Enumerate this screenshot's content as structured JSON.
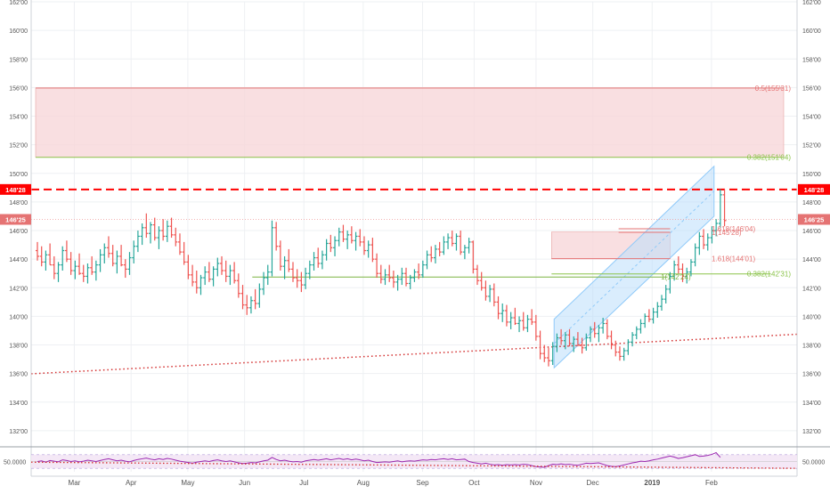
{
  "chart_data": {
    "type": "ohlc",
    "colors": {
      "up": "#26a69a",
      "down": "#ef5350",
      "grid": "#eef0f3",
      "axis_text": "#555555",
      "zone_fill": "#f8d7da",
      "zone_border": "#e9a4a4",
      "fib_green": "#8bc34a",
      "fib_red": "#f06292",
      "channel_fill": "#bbdefb",
      "channel_border": "#90caf9",
      "resistance": "#ff0000",
      "trendline": "#d32f2f",
      "rsi_line": "#9c27b0",
      "rsi_fill": "#f3e5f5"
    },
    "y_axis": {
      "ylim": [
        131.0,
        162.0
      ],
      "ticks": [
        "132'00",
        "134'00",
        "136'00",
        "138'00",
        "140'00",
        "142'00",
        "144'00",
        "146'00",
        "148'00",
        "150'00",
        "152'00",
        "154'00",
        "156'00",
        "158'00",
        "160'00",
        "162'00"
      ],
      "tick_values": [
        132,
        134,
        136,
        138,
        140,
        142,
        144,
        146,
        148,
        150,
        152,
        154,
        156,
        158,
        160,
        162
      ]
    },
    "x_axis": {
      "xlim": [
        0,
        290
      ],
      "labels": [
        {
          "label": "Mar",
          "x": 15
        },
        {
          "label": "Apr",
          "x": 37
        },
        {
          "label": "May",
          "x": 59
        },
        {
          "label": "Jun",
          "x": 81
        },
        {
          "label": "Jul",
          "x": 104
        },
        {
          "label": "Aug",
          "x": 127
        },
        {
          "label": "Sep",
          "x": 150
        },
        {
          "label": "Oct",
          "x": 170
        },
        {
          "label": "Nov",
          "x": 194
        },
        {
          "label": "Dec",
          "x": 216
        },
        {
          "label": "2019",
          "x": 239,
          "bold": true
        },
        {
          "label": "Feb",
          "x": 262
        }
      ]
    },
    "price_tags": [
      {
        "label": "148'28",
        "value": 148.875,
        "highlight": true
      },
      {
        "label": "146'25",
        "value": 146.78,
        "highlight": false
      }
    ],
    "zones": [
      {
        "name": "resistance-zone",
        "y_low": 151.125,
        "y_high": 155.97,
        "x_start": 0,
        "x_end": 290
      },
      {
        "name": "projection-box",
        "y_low": 144.03,
        "y_high": 145.9,
        "x_start": 200,
        "x_end": 246
      }
    ],
    "horizontal_lines": [
      {
        "name": "fib-0.5",
        "value": 155.97,
        "x_start": 0,
        "x_end": 290,
        "color": "#e57373",
        "label": "0.5(155'31)"
      },
      {
        "name": "fib-0.382-upper",
        "value": 151.125,
        "x_start": 0,
        "x_end": 290,
        "color": "#8bc34a",
        "label": "0.382(151'04)"
      },
      {
        "name": "fib-0.382-lower",
        "value": 142.97,
        "x_start": 200,
        "x_end": 285,
        "color": "#8bc34a",
        "label": "0.382(142'31)"
      },
      {
        "name": "fib-1-lower",
        "value": 142.75,
        "x_start": 84,
        "x_end": 245,
        "color": "#7cb342",
        "label": "1(142'24)"
      },
      {
        "name": "fib-1.618-lower",
        "value": 144.03,
        "x_start": 200,
        "x_end": 246,
        "color": "#e57373",
        "label": "1.618(144'01)"
      },
      {
        "name": "fib-1.618-upper",
        "value": 146.125,
        "x_start": 226,
        "x_end": 246,
        "color": "#e57373",
        "label": "1.618(146'04)"
      },
      {
        "name": "fib-1-upper",
        "value": 145.875,
        "x_start": 226,
        "x_end": 246,
        "color": "#e57373",
        "label": "1(145'28)"
      }
    ],
    "resistance_line": {
      "value": 148.875,
      "label": "148'28"
    },
    "reference_line": {
      "value": 146.78
    },
    "trendline": {
      "x1": 0,
      "y1": 136.0,
      "x2": 290,
      "y2": 138.7
    },
    "channel": {
      "lower_start": {
        "x": 201,
        "y": 136.4
      },
      "lower_end": {
        "x": 263,
        "y": 147.0
      },
      "upper_start": {
        "x": 201,
        "y": 139.8
      },
      "upper_end": {
        "x": 263,
        "y": 150.5
      }
    },
    "ohlc": [
      [
        144.6,
        145.2,
        143.9,
        144.2
      ],
      [
        144.2,
        144.9,
        143.5,
        143.8
      ],
      [
        143.8,
        144.6,
        143.2,
        144.3
      ],
      [
        144.3,
        145.1,
        143.6,
        143.6
      ],
      [
        143.6,
        144.2,
        142.6,
        143.0
      ],
      [
        143.0,
        143.8,
        142.4,
        143.6
      ],
      [
        143.6,
        144.9,
        143.2,
        144.6
      ],
      [
        144.6,
        145.3,
        143.8,
        144.0
      ],
      [
        144.0,
        144.5,
        142.9,
        143.2
      ],
      [
        143.2,
        143.9,
        142.6,
        143.5
      ],
      [
        143.5,
        144.4,
        142.9,
        143.0
      ],
      [
        143.0,
        143.6,
        142.4,
        142.8
      ],
      [
        142.8,
        143.7,
        142.3,
        143.4
      ],
      [
        143.4,
        144.2,
        142.9,
        143.1
      ],
      [
        143.1,
        143.9,
        142.5,
        143.6
      ],
      [
        143.6,
        144.7,
        143.1,
        144.3
      ],
      [
        144.3,
        145.1,
        143.7,
        144.8
      ],
      [
        144.8,
        145.6,
        144.1,
        144.4
      ],
      [
        144.4,
        145.0,
        143.5,
        143.7
      ],
      [
        143.7,
        144.6,
        143.0,
        144.2
      ],
      [
        144.2,
        145.0,
        143.5,
        143.6
      ],
      [
        143.6,
        144.0,
        142.7,
        143.3
      ],
      [
        143.3,
        144.5,
        142.9,
        144.1
      ],
      [
        144.1,
        145.3,
        143.7,
        144.9
      ],
      [
        144.9,
        146.0,
        144.5,
        145.6
      ],
      [
        145.6,
        146.5,
        145.0,
        146.2
      ],
      [
        146.2,
        147.2,
        145.5,
        145.8
      ],
      [
        145.8,
        146.6,
        145.1,
        146.4
      ],
      [
        146.4,
        146.9,
        145.3,
        145.5
      ],
      [
        145.5,
        146.3,
        144.7,
        146.0
      ],
      [
        146.0,
        146.8,
        145.3,
        145.6
      ],
      [
        145.6,
        146.7,
        145.2,
        146.3
      ],
      [
        146.3,
        146.9,
        145.5,
        145.7
      ],
      [
        145.7,
        146.2,
        144.9,
        145.2
      ],
      [
        145.2,
        145.8,
        144.3,
        144.5
      ],
      [
        144.5,
        145.2,
        143.6,
        143.8
      ],
      [
        143.8,
        144.3,
        142.6,
        142.9
      ],
      [
        142.9,
        143.6,
        142.1,
        142.4
      ],
      [
        142.4,
        143.2,
        141.6,
        142.0
      ],
      [
        142.0,
        142.9,
        141.5,
        142.7
      ],
      [
        142.7,
        143.5,
        142.2,
        143.1
      ],
      [
        143.1,
        143.8,
        142.4,
        142.6
      ],
      [
        142.6,
        143.5,
        142.1,
        143.3
      ],
      [
        143.3,
        144.1,
        142.8,
        143.7
      ],
      [
        143.7,
        144.2,
        142.9,
        143.2
      ],
      [
        143.2,
        143.9,
        142.4,
        142.8
      ],
      [
        142.8,
        143.6,
        142.2,
        143.2
      ],
      [
        143.2,
        143.8,
        142.3,
        142.5
      ],
      [
        142.5,
        143.0,
        141.3,
        141.6
      ],
      [
        141.6,
        142.2,
        140.5,
        140.8
      ],
      [
        140.8,
        141.5,
        140.1,
        140.6
      ],
      [
        140.6,
        141.4,
        140.2,
        141.1
      ],
      [
        141.1,
        141.9,
        140.5,
        140.9
      ],
      [
        140.9,
        142.3,
        140.6,
        141.9
      ],
      [
        141.9,
        143.1,
        141.5,
        142.7
      ],
      [
        142.7,
        143.6,
        142.2,
        143.1
      ],
      [
        143.1,
        146.7,
        142.8,
        146.2
      ],
      [
        146.2,
        146.6,
        144.6,
        144.9
      ],
      [
        144.9,
        145.3,
        143.2,
        143.5
      ],
      [
        143.5,
        144.2,
        142.6,
        143.9
      ],
      [
        143.9,
        144.7,
        143.1,
        143.3
      ],
      [
        143.3,
        143.8,
        142.4,
        142.7
      ],
      [
        142.7,
        143.3,
        142.0,
        142.5
      ],
      [
        142.5,
        143.1,
        141.7,
        142.2
      ],
      [
        142.2,
        143.4,
        141.9,
        143.0
      ],
      [
        143.0,
        143.9,
        142.6,
        143.6
      ],
      [
        143.6,
        144.5,
        143.2,
        144.1
      ],
      [
        144.1,
        144.8,
        143.4,
        143.7
      ],
      [
        143.7,
        144.6,
        143.3,
        144.3
      ],
      [
        144.3,
        145.4,
        143.9,
        145.1
      ],
      [
        145.1,
        145.7,
        144.5,
        144.8
      ],
      [
        144.8,
        145.6,
        144.2,
        145.3
      ],
      [
        145.3,
        146.2,
        144.9,
        145.9
      ],
      [
        145.9,
        146.4,
        145.2,
        145.4
      ],
      [
        145.4,
        146.0,
        144.7,
        145.7
      ],
      [
        145.7,
        146.3,
        145.1,
        145.3
      ],
      [
        145.3,
        145.9,
        144.6,
        145.6
      ],
      [
        145.6,
        146.1,
        144.9,
        145.2
      ],
      [
        145.2,
        145.6,
        144.3,
        144.6
      ],
      [
        144.6,
        145.3,
        144.1,
        145.0
      ],
      [
        145.0,
        145.5,
        143.8,
        144.0
      ],
      [
        144.0,
        144.4,
        142.7,
        143.0
      ],
      [
        143.0,
        143.6,
        142.3,
        142.6
      ],
      [
        142.6,
        143.3,
        142.2,
        142.9
      ],
      [
        142.9,
        143.6,
        142.4,
        142.7
      ],
      [
        142.7,
        143.2,
        142.0,
        142.4
      ],
      [
        142.4,
        142.9,
        141.8,
        142.6
      ],
      [
        142.6,
        143.4,
        142.2,
        143.0
      ],
      [
        143.0,
        143.4,
        142.1,
        142.3
      ],
      [
        142.3,
        142.9,
        141.9,
        142.7
      ],
      [
        142.7,
        143.3,
        142.4,
        143.1
      ],
      [
        143.1,
        143.7,
        142.6,
        142.9
      ],
      [
        142.9,
        143.9,
        142.7,
        143.6
      ],
      [
        143.6,
        144.6,
        143.3,
        144.3
      ],
      [
        144.3,
        144.9,
        143.8,
        144.1
      ],
      [
        144.1,
        145.0,
        143.7,
        144.7
      ],
      [
        144.7,
        145.2,
        144.2,
        144.5
      ],
      [
        144.5,
        145.6,
        144.3,
        145.2
      ],
      [
        145.2,
        145.8,
        144.7,
        145.5
      ],
      [
        145.5,
        146.0,
        144.9,
        145.1
      ],
      [
        145.1,
        145.8,
        144.6,
        145.6
      ],
      [
        145.6,
        146.0,
        144.3,
        144.5
      ],
      [
        144.5,
        145.0,
        144.0,
        144.8
      ],
      [
        144.8,
        145.5,
        144.4,
        145.2
      ],
      [
        145.2,
        145.3,
        143.0,
        143.3
      ],
      [
        143.3,
        143.6,
        142.2,
        142.5
      ],
      [
        142.5,
        143.1,
        141.8,
        142.0
      ],
      [
        142.0,
        142.5,
        141.1,
        141.4
      ],
      [
        141.4,
        142.2,
        141.0,
        141.9
      ],
      [
        141.9,
        142.3,
        140.7,
        141.0
      ],
      [
        141.0,
        141.4,
        139.8,
        140.2
      ],
      [
        140.2,
        140.9,
        139.6,
        140.4
      ],
      [
        140.4,
        140.8,
        139.3,
        139.6
      ],
      [
        139.6,
        140.3,
        139.1,
        139.9
      ],
      [
        139.9,
        140.6,
        139.4,
        139.5
      ],
      [
        139.5,
        140.0,
        138.9,
        139.7
      ],
      [
        139.7,
        140.3,
        139.0,
        139.2
      ],
      [
        139.2,
        140.1,
        138.9,
        139.8
      ],
      [
        139.8,
        140.5,
        139.4,
        139.6
      ],
      [
        139.6,
        140.1,
        138.3,
        138.6
      ],
      [
        138.6,
        139.0,
        137.0,
        137.4
      ],
      [
        137.4,
        138.0,
        136.8,
        137.1
      ],
      [
        137.1,
        137.8,
        136.5,
        136.9
      ],
      [
        136.9,
        138.2,
        136.6,
        137.9
      ],
      [
        137.9,
        138.8,
        137.5,
        138.5
      ],
      [
        138.5,
        139.1,
        138.0,
        138.3
      ],
      [
        138.3,
        138.9,
        137.7,
        138.7
      ],
      [
        138.7,
        139.1,
        137.9,
        138.1
      ],
      [
        138.1,
        138.6,
        137.5,
        138.4
      ],
      [
        138.4,
        138.9,
        137.9,
        138.0
      ],
      [
        138.0,
        138.5,
        137.4,
        137.8
      ],
      [
        137.8,
        138.8,
        137.6,
        138.5
      ],
      [
        138.5,
        139.3,
        138.2,
        139.1
      ],
      [
        139.1,
        139.6,
        138.5,
        138.8
      ],
      [
        138.8,
        139.4,
        138.2,
        139.2
      ],
      [
        139.2,
        139.9,
        138.8,
        139.5
      ],
      [
        139.5,
        139.8,
        138.4,
        138.6
      ],
      [
        138.6,
        139.0,
        137.7,
        138.0
      ],
      [
        138.0,
        138.3,
        137.2,
        137.5
      ],
      [
        137.5,
        137.9,
        136.9,
        137.2
      ],
      [
        137.2,
        137.8,
        136.9,
        137.6
      ],
      [
        137.6,
        138.4,
        137.3,
        138.2
      ],
      [
        138.2,
        138.9,
        137.9,
        138.7
      ],
      [
        138.7,
        139.3,
        138.4,
        139.1
      ],
      [
        139.1,
        139.8,
        138.8,
        139.5
      ],
      [
        139.5,
        140.2,
        139.2,
        140.0
      ],
      [
        140.0,
        140.5,
        139.6,
        139.8
      ],
      [
        139.8,
        140.6,
        139.5,
        140.3
      ],
      [
        140.3,
        141.0,
        139.9,
        140.7
      ],
      [
        140.7,
        141.5,
        140.4,
        141.2
      ],
      [
        141.2,
        142.2,
        140.9,
        141.9
      ],
      [
        141.9,
        143.1,
        141.6,
        142.8
      ],
      [
        142.8,
        143.9,
        142.5,
        143.6
      ],
      [
        143.6,
        144.2,
        143.0,
        143.3
      ],
      [
        143.3,
        143.7,
        142.4,
        142.8
      ],
      [
        142.8,
        143.4,
        142.3,
        143.1
      ],
      [
        143.1,
        144.0,
        142.8,
        143.8
      ],
      [
        143.8,
        145.1,
        143.5,
        144.8
      ],
      [
        144.8,
        145.9,
        144.3,
        145.6
      ],
      [
        145.6,
        146.1,
        144.7,
        145.0
      ],
      [
        145.0,
        145.8,
        144.6,
        145.5
      ],
      [
        145.5,
        146.3,
        145.1,
        146.0
      ],
      [
        146.0,
        146.8,
        145.6,
        146.5
      ],
      [
        146.5,
        148.9,
        146.2,
        148.5
      ],
      [
        148.5,
        148.9,
        146.3,
        146.7
      ]
    ],
    "rsi": {
      "ylim": [
        20,
        80
      ],
      "level": 50,
      "level_label": "50.0000",
      "values": [
        50,
        52,
        48,
        53,
        51,
        49,
        55,
        53,
        50,
        52,
        49,
        51,
        54,
        52,
        50,
        53,
        56,
        58,
        55,
        52,
        54,
        51,
        49,
        53,
        56,
        58,
        60,
        57,
        55,
        58,
        56,
        59,
        57,
        54,
        51,
        49,
        47,
        45,
        48,
        50,
        52,
        50,
        53,
        55,
        52,
        50,
        52,
        49,
        46,
        44,
        45,
        47,
        46,
        49,
        52,
        54,
        62,
        56,
        52,
        54,
        51,
        49,
        50,
        48,
        52,
        54,
        56,
        54,
        56,
        58,
        55,
        57,
        59,
        56,
        58,
        55,
        57,
        55,
        52,
        54,
        50,
        47,
        48,
        49,
        48,
        50,
        52,
        49,
        51,
        52,
        51,
        53,
        55,
        54,
        56,
        55,
        57,
        58,
        56,
        58,
        55,
        56,
        57,
        50,
        47,
        45,
        43,
        45,
        42,
        40,
        41,
        39,
        41,
        40,
        41,
        40,
        42,
        41,
        38,
        35,
        34,
        33,
        38,
        42,
        41,
        43,
        41,
        42,
        40,
        39,
        42,
        45,
        44,
        45,
        46,
        42,
        38,
        36,
        35,
        37,
        40,
        43,
        46,
        48,
        51,
        50,
        52,
        55,
        57,
        60,
        63,
        66,
        63,
        59,
        61,
        64,
        67,
        70,
        65,
        66,
        68,
        71,
        76,
        62
      ],
      "trend": {
        "x1": 0,
        "y1": 47,
        "x2": 290,
        "y2": 30
      }
    }
  }
}
